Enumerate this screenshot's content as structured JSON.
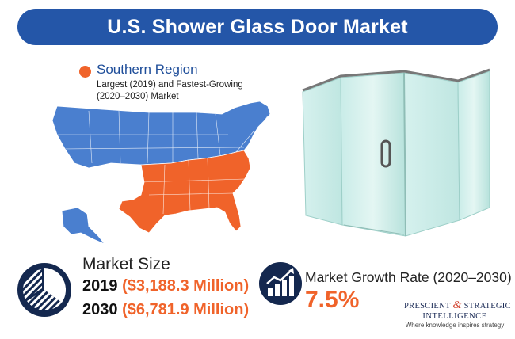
{
  "banner": {
    "title": "U.S. Shower Glass Door Market"
  },
  "legend": {
    "title": "Southern Region",
    "description": "Largest (2019) and Fastest-Growing (2020–2030) Market",
    "highlight_color": "#f0632a",
    "base_color": "#4a7fcf"
  },
  "market_size": {
    "label": "Market Size",
    "rows": [
      {
        "year": "2019",
        "value": "($3,188.3 Million)"
      },
      {
        "year": "2030",
        "value": "($6,781.9 Million)"
      }
    ]
  },
  "growth": {
    "label": "Market Growth Rate (2020–2030)",
    "value": "7.5%"
  },
  "logo": {
    "line1_a": "PRESCIENT",
    "line1_amp": "&",
    "line1_b": "STRATEGIC",
    "line2": "INTELLIGENCE",
    "tagline": "Where knowledge inspires strategy"
  },
  "icons": {
    "pie": "pie-chart-icon",
    "growth": "growth-chart-icon",
    "map": "us-map-icon",
    "door": "shower-door-illustration"
  }
}
